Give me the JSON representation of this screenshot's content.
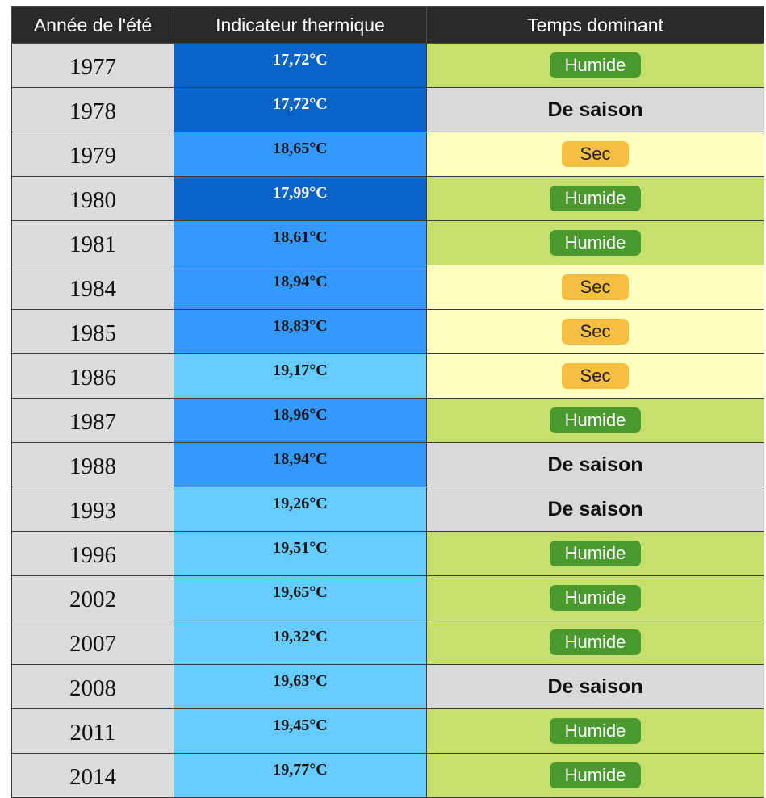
{
  "table": {
    "headers": [
      "Année de l'été",
      "Indicateur thermique",
      "Temps dominant"
    ],
    "rows": [
      {
        "year": "1977",
        "temp": "17,72°C",
        "weather": "Humide"
      },
      {
        "year": "1978",
        "temp": "17,72°C",
        "weather": "De saison"
      },
      {
        "year": "1979",
        "temp": "18,65°C",
        "weather": "Sec"
      },
      {
        "year": "1980",
        "temp": "17,99°C",
        "weather": "Humide"
      },
      {
        "year": "1981",
        "temp": "18,61°C",
        "weather": "Humide"
      },
      {
        "year": "1984",
        "temp": "18,94°C",
        "weather": "Sec"
      },
      {
        "year": "1985",
        "temp": "18,83°C",
        "weather": "Sec"
      },
      {
        "year": "1986",
        "temp": "19,17°C",
        "weather": "Sec"
      },
      {
        "year": "1987",
        "temp": "18,96°C",
        "weather": "Humide"
      },
      {
        "year": "1988",
        "temp": "18,94°C",
        "weather": "De saison"
      },
      {
        "year": "1993",
        "temp": "19,26°C",
        "weather": "De saison"
      },
      {
        "year": "1996",
        "temp": "19,51°C",
        "weather": "Humide"
      },
      {
        "year": "2002",
        "temp": "19,65°C",
        "weather": "Humide"
      },
      {
        "year": "2007",
        "temp": "19,32°C",
        "weather": "Humide"
      },
      {
        "year": "2008",
        "temp": "19,63°C",
        "weather": "De saison"
      },
      {
        "year": "2011",
        "temp": "19,45°C",
        "weather": "Humide"
      },
      {
        "year": "2014",
        "temp": "19,77°C",
        "weather": "Humide"
      }
    ]
  },
  "colors": {
    "header_bg": "#2a2a2a",
    "year_bg": "#dcdcdc",
    "temp_dark": "#0a64c8",
    "temp_mid": "#3399ff",
    "temp_light": "#66ccff",
    "humide_bg": "#c5e06c",
    "humide_badge": "#4a9a2e",
    "sec_bg": "#ffffc0",
    "sec_badge": "#f7bf42",
    "saison_bg": "#d9d9d9"
  }
}
